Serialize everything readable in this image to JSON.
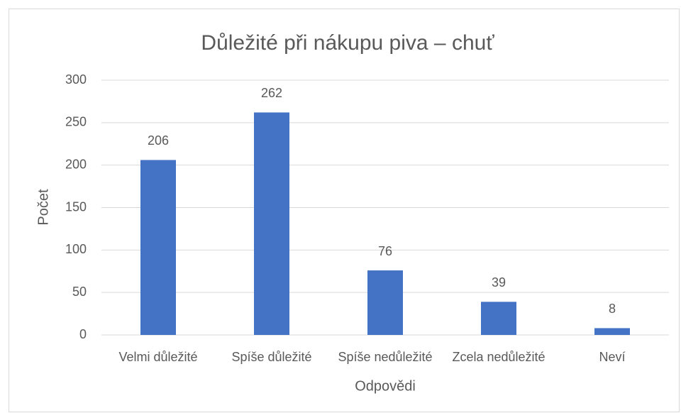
{
  "chart_data": {
    "type": "bar",
    "title": "Důležité při nákupu piva – chuť",
    "x_label": "Odpovědi",
    "y_label": "Počet",
    "categories": [
      "Velmi důležité",
      "Spíše důležité",
      "Spíše nedůležité",
      "Zcela nedůležité",
      "Neví"
    ],
    "values": [
      206,
      262,
      76,
      39,
      8
    ],
    "color": "#4472c4",
    "ylim": [
      0,
      300
    ],
    "yticks": [
      0,
      50,
      100,
      150,
      200,
      250,
      300
    ],
    "grid": true
  }
}
